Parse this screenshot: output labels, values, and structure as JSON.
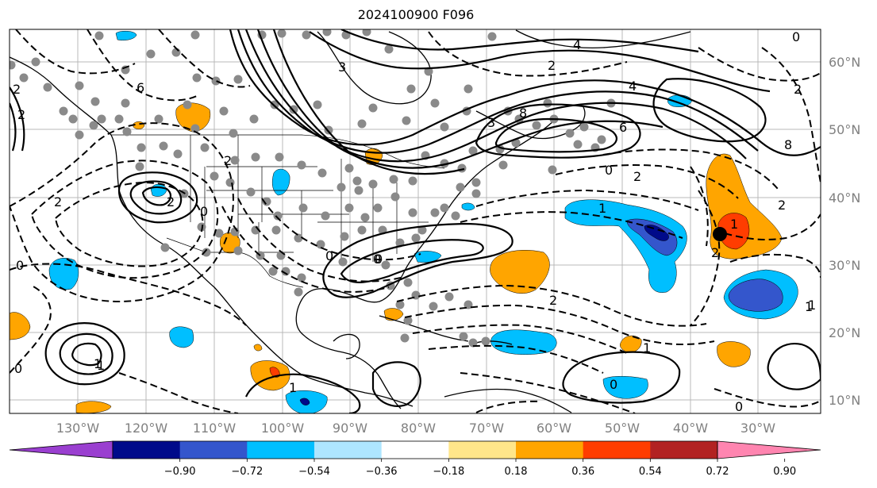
{
  "title": "2024100900 F096",
  "map": {
    "longitude_labels": [
      "130°W",
      "120°W",
      "110°W",
      "100°W",
      "90°W",
      "80°W",
      "70°W",
      "60°W",
      "50°W",
      "40°W",
      "30°W"
    ],
    "latitude_labels": [
      "60°N",
      "50°N",
      "40°N",
      "30°N",
      "20°N",
      "10°N"
    ],
    "marker": "black-dot"
  },
  "colorbar": {
    "ticks": [
      "−0.90",
      "−0.72",
      "−0.54",
      "−0.36",
      "−0.18",
      "0.18",
      "0.36",
      "0.54",
      "0.72",
      "0.90"
    ],
    "colors": [
      "#9a3fd0",
      "#000a8a",
      "#3456cc",
      "#00bfff",
      "#aee6ff",
      "#ffffff",
      "#ffe68a",
      "#ffa500",
      "#ff3d00",
      "#b22222",
      "#ff85b0"
    ]
  },
  "contour_labels": {
    "solid": [
      "4",
      "3",
      "4",
      "6",
      "3",
      "1",
      "1",
      "1",
      "1",
      "1",
      "1",
      "0"
    ],
    "dashed": [
      "6",
      "2",
      "2",
      "2",
      "2",
      "2",
      "0",
      "0",
      "0",
      "0",
      "0",
      "0",
      "0",
      "2",
      "2",
      "2",
      "2",
      "2",
      "2",
      "1",
      "1",
      "0",
      "8",
      "8",
      "0"
    ]
  }
}
